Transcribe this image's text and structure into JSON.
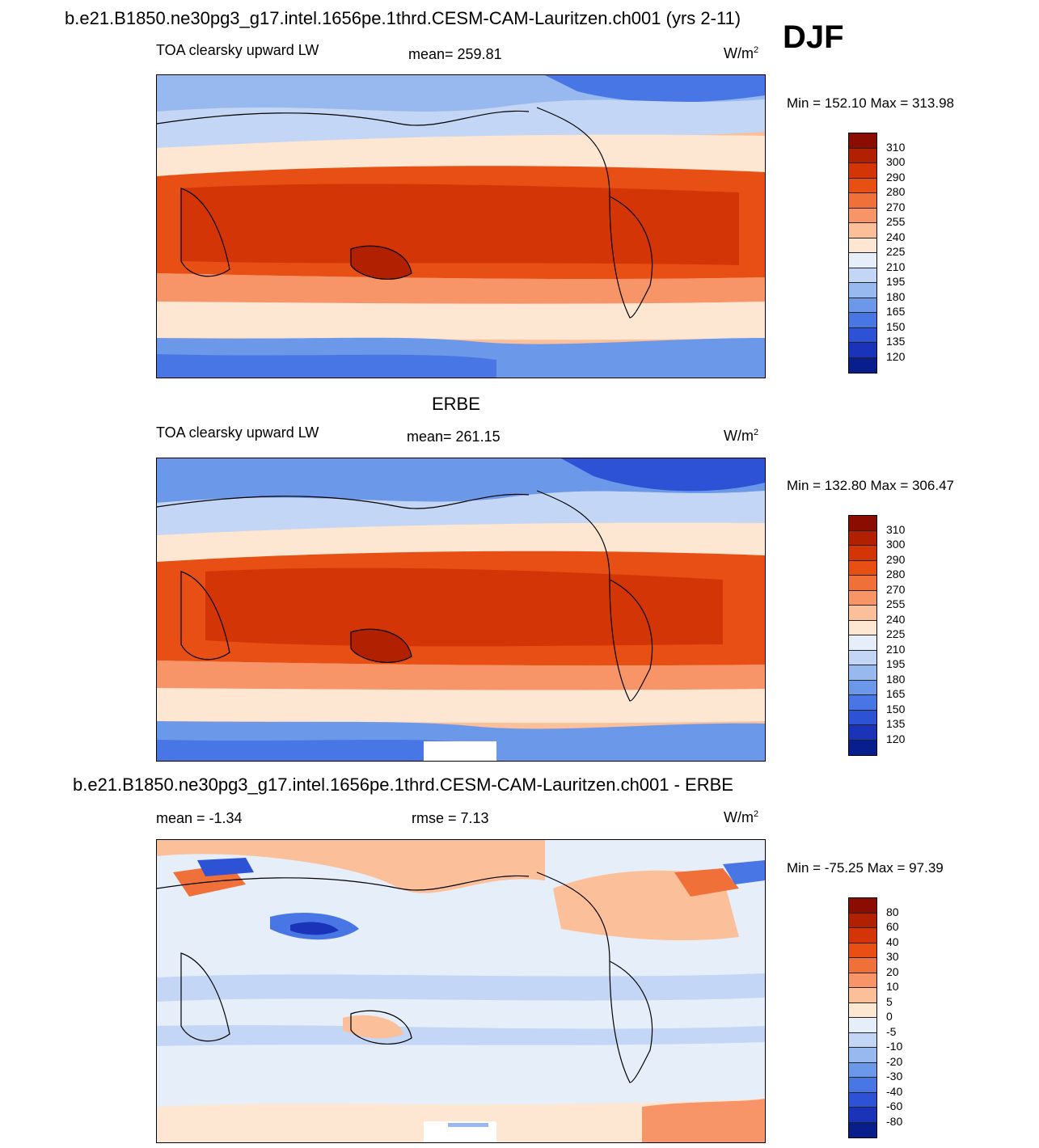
{
  "header": {
    "case_title": "b.e21.B1850.ne30pg3_g17.intel.1656pe.1thrd.CESM-CAM-Lauritzen.ch001 (yrs 2-11)",
    "season": "DJF"
  },
  "panels": [
    {
      "id": "model",
      "title": "",
      "variable": "TOA clearsky upward LW",
      "stat": "mean= 259.81",
      "units_base": "W/m",
      "units_exp": "2",
      "minmax": "Min = 152.10 Max = 313.98"
    },
    {
      "id": "obs",
      "title": "ERBE",
      "variable": "TOA clearsky upward LW",
      "stat": "mean= 261.15",
      "units_base": "W/m",
      "units_exp": "2",
      "minmax": "Min = 132.80 Max = 306.47"
    },
    {
      "id": "diff",
      "title": "b.e21.B1850.ne30pg3_g17.intel.1656pe.1thrd.CESM-CAM-Lauritzen.ch001 - ERBE",
      "stat_mean": "mean =  -1.34",
      "stat_rmse": "rmse =   7.13",
      "units_base": "W/m",
      "units_exp": "2",
      "minmax": "Min = -75.25 Max =  97.39"
    }
  ],
  "colorbars": {
    "absolute": {
      "labels": [
        "310",
        "300",
        "290",
        "280",
        "270",
        "255",
        "240",
        "225",
        "210",
        "195",
        "180",
        "165",
        "150",
        "135",
        "120"
      ],
      "colors": [
        "#8b0c00",
        "#b12000",
        "#d43506",
        "#e84f14",
        "#f0703a",
        "#f79468",
        "#fbbf9a",
        "#fde6d2",
        "#e6eefa",
        "#c3d6f5",
        "#98b9ef",
        "#6c98ea",
        "#4876e4",
        "#2d52d6",
        "#1a33b8",
        "#071e8c"
      ]
    },
    "difference": {
      "labels": [
        "80",
        "60",
        "40",
        "30",
        "20",
        "10",
        "5",
        "0",
        "-5",
        "-10",
        "-20",
        "-30",
        "-40",
        "-60",
        "-80"
      ],
      "colors": [
        "#8b0c00",
        "#b12000",
        "#d43506",
        "#e84f14",
        "#f0703a",
        "#f79468",
        "#fbbf9a",
        "#fde6d2",
        "#e6eefa",
        "#c3d6f5",
        "#98b9ef",
        "#6c98ea",
        "#4876e4",
        "#2d52d6",
        "#1a33b8",
        "#071e8c"
      ]
    }
  }
}
